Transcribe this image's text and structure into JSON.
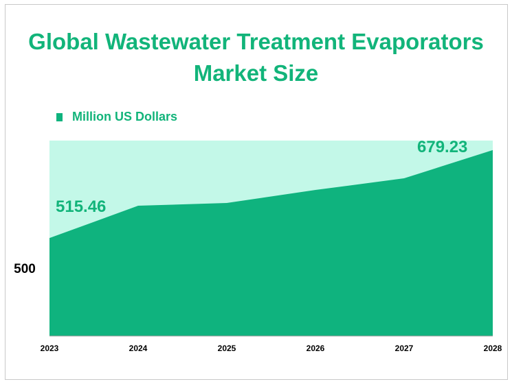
{
  "title": "Global Wastewater Treatment Evaporators Market Size",
  "chart_data": {
    "type": "area",
    "title": "Global Wastewater Treatment Evaporators Market Size",
    "categories": [
      "2023",
      "2024",
      "2025",
      "2026",
      "2027",
      "2028"
    ],
    "series": [
      {
        "name": "Million US Dollars",
        "values": [
          515.46,
          575.6,
          580.7,
          605.0,
          626.7,
          679.23
        ]
      }
    ],
    "data_labels": [
      {
        "index": 0,
        "text": "515.46"
      },
      {
        "index": 5,
        "text": "679.23"
      }
    ],
    "y_tick_labels": [
      "500"
    ],
    "ylim": [
      333,
      697
    ],
    "grid": false,
    "legend": "top-left",
    "colors": {
      "area": "#0fb37e",
      "background": "#c3f8e8",
      "text": "#12b47a"
    }
  }
}
